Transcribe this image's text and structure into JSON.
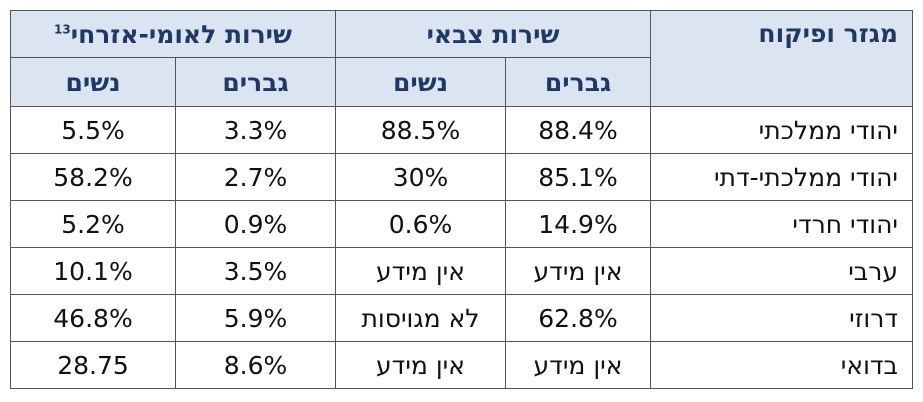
{
  "table": {
    "header": {
      "sector": "מגזר ופיקוח",
      "groups": [
        {
          "title": "שירות צבאי",
          "columns": [
            "גברים",
            "נשים"
          ]
        },
        {
          "title": "שירות לאומי-אזרחי",
          "note": "13",
          "columns": [
            "גברים",
            "נשים"
          ]
        }
      ]
    },
    "rows": [
      [
        "יהודי ממלכתי",
        "88.4%",
        "88.5%",
        "3.3%",
        "5.5%"
      ],
      [
        "יהודי ממלכתי-דתי",
        "85.1%",
        "30%",
        "2.7%",
        "58.2%"
      ],
      [
        "יהודי חרדי",
        "14.9%",
        "0.6%",
        "0.9%",
        "5.2%"
      ],
      [
        "ערבי",
        "אין מידע",
        "אין מידע",
        "3.5%",
        "10.1%"
      ],
      [
        "דרוזי",
        "62.8%",
        "לא מגויסות",
        "5.9%",
        "46.8%"
      ],
      [
        "בדואי",
        "אין מידע",
        "אין מידע",
        "8.6%",
        "28.75"
      ]
    ]
  }
}
